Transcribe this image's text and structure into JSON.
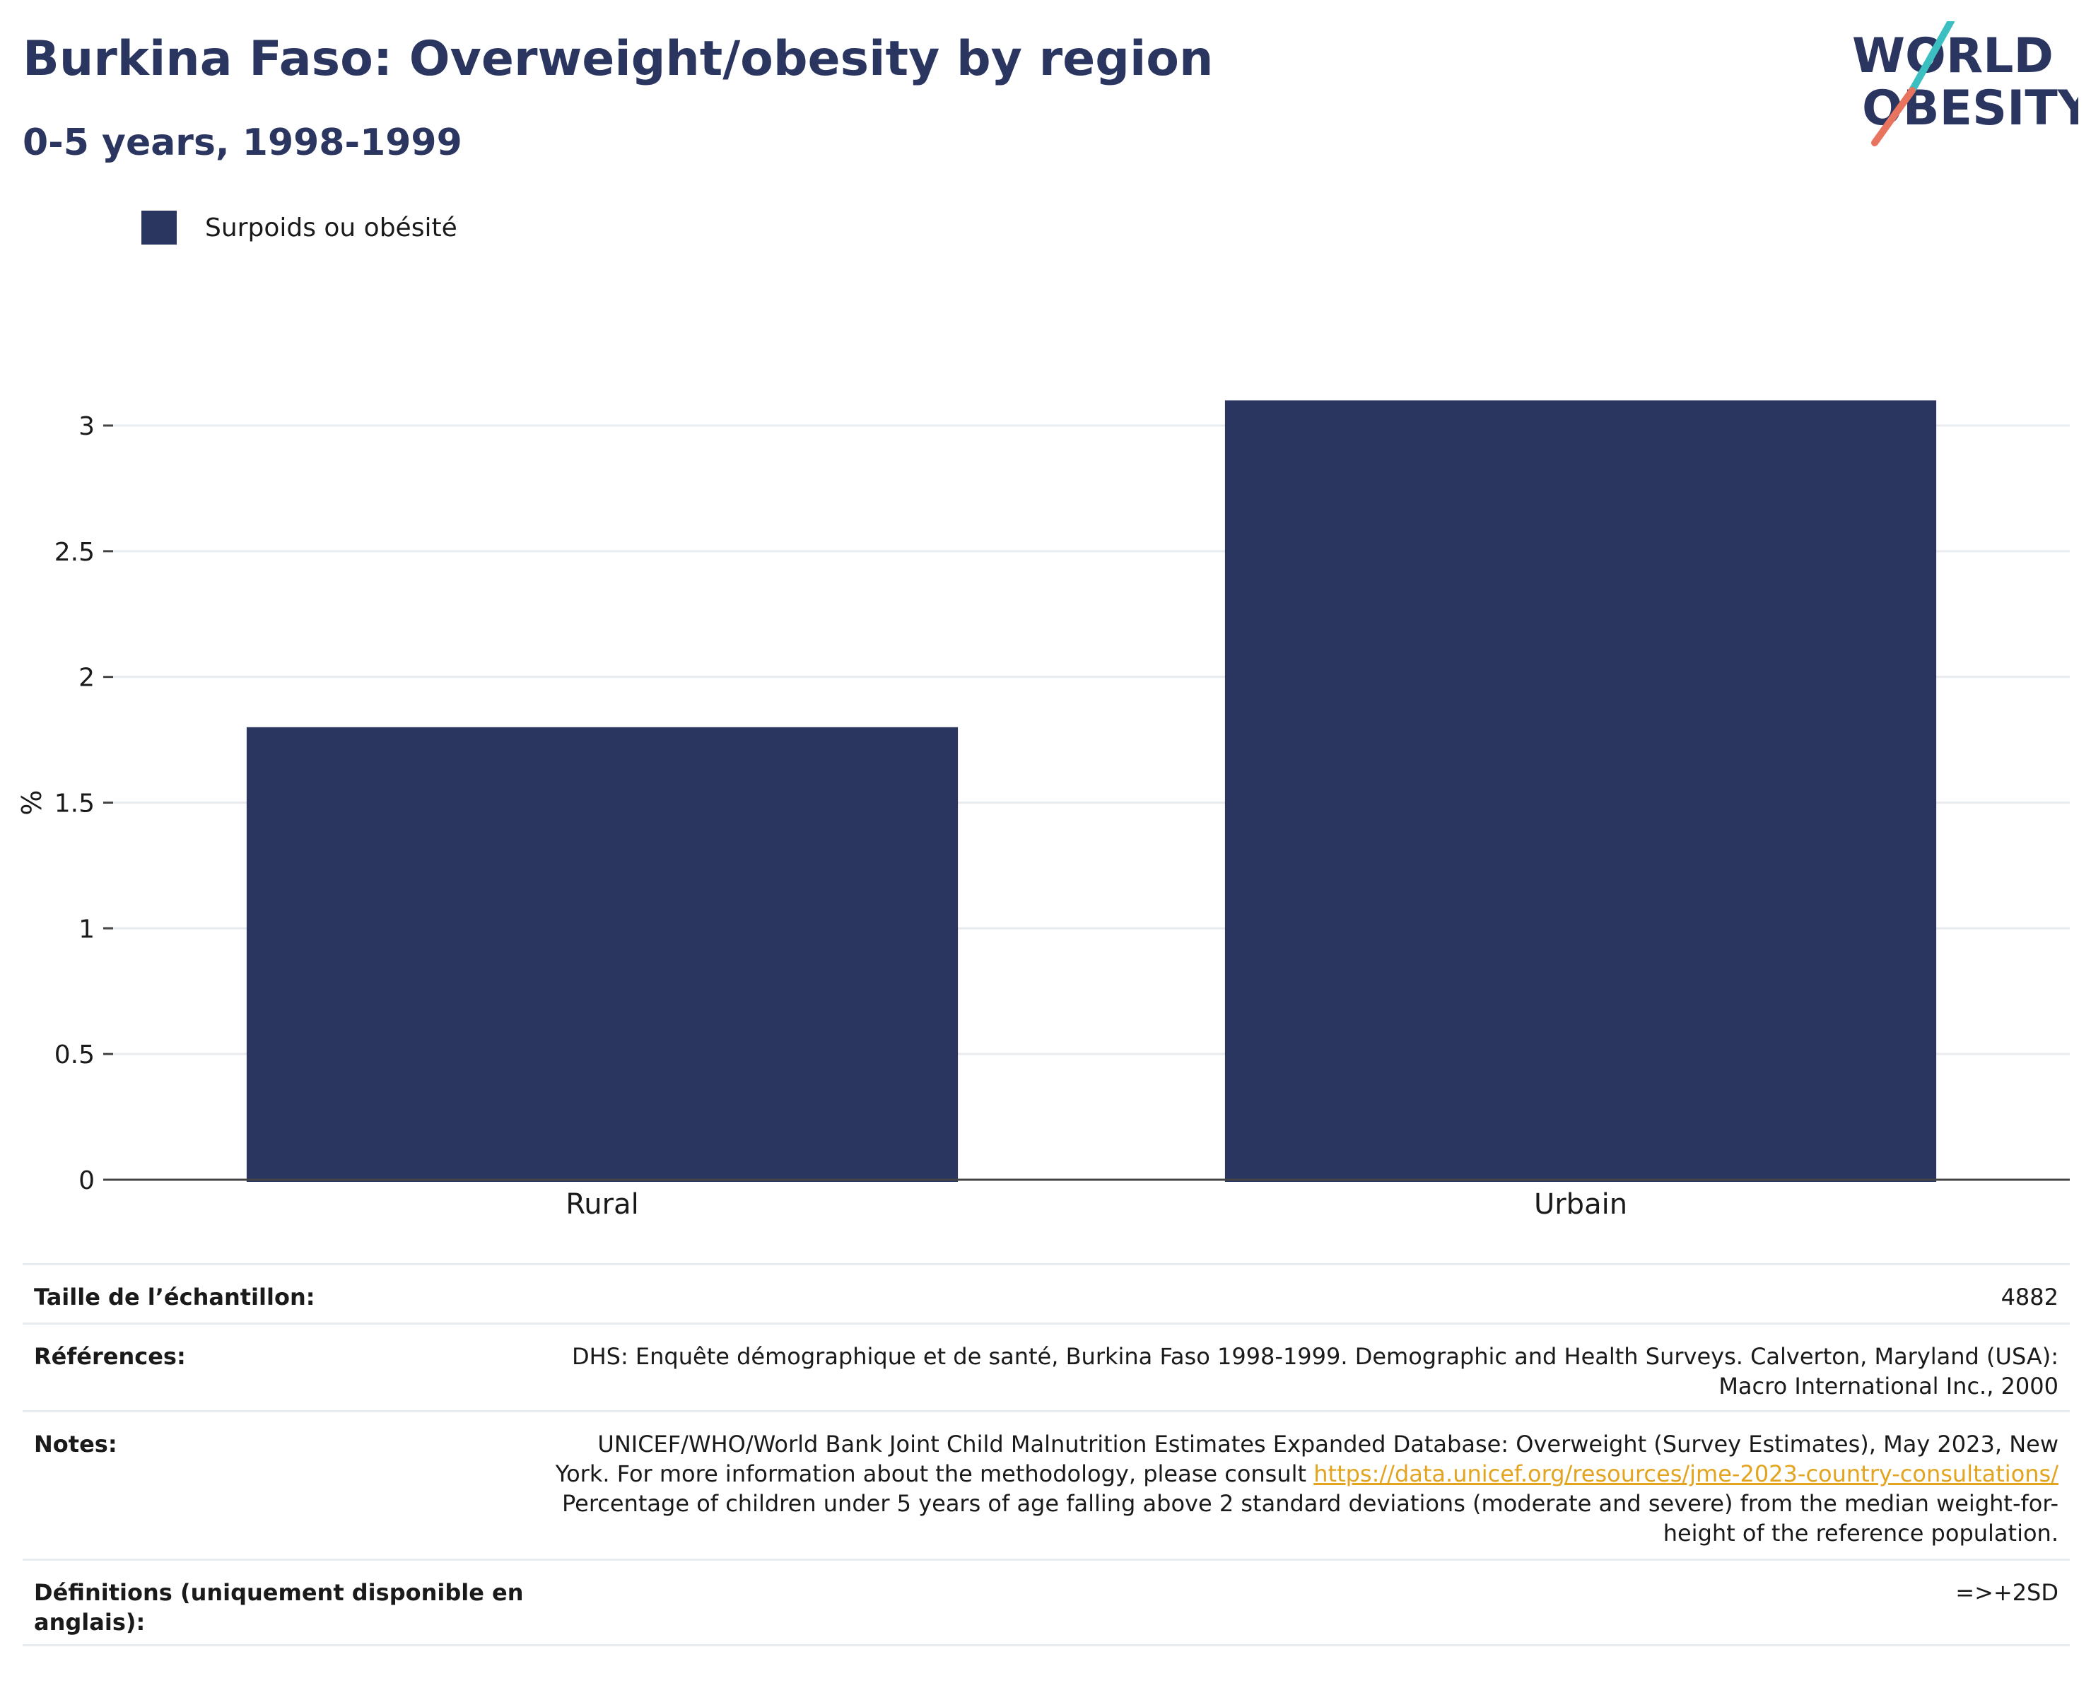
{
  "title": "Burkina Faso: Overweight/obesity by region",
  "subtitle": "0-5 years, 1998-1999",
  "logo": {
    "line1": "WORLD",
    "line2": "OBESITY"
  },
  "legend": {
    "label": "Surpoids ou obésité",
    "color": "#2a3560"
  },
  "chart_data": {
    "type": "bar",
    "categories": [
      "Rural",
      "Urbain"
    ],
    "series": [
      {
        "name": "Surpoids ou obésité",
        "values": [
          1.8,
          3.1
        ],
        "color": "#2a3560"
      }
    ],
    "ylabel": "%",
    "xlabel": "",
    "ylim": [
      0,
      3.4
    ],
    "yticks": [
      0,
      0.5,
      1,
      1.5,
      2,
      2.5,
      3
    ],
    "ytick_labels": [
      "0",
      "0.5",
      "1",
      "1.5",
      "2",
      "2.5",
      "3"
    ],
    "grid": true,
    "legend_position": "top-left"
  },
  "table": {
    "sample": {
      "label": "Taille de l’échantillon:",
      "value": "4882"
    },
    "references": {
      "label": "Références:",
      "value": "DHS: Enquête démographique et de santé, Burkina Faso 1998-1999. Demographic and Health Surveys. Calverton, Maryland (USA): Macro International Inc., 2000"
    },
    "notes": {
      "label": "Notes:",
      "text1": "UNICEF/WHO/World Bank Joint Child Malnutrition Estimates Expanded Database: Overweight (Survey Estimates), May 2023, New York. For more information about the methodology, please consult ",
      "link": "https://data.unicef.org/resources/jme-2023-country-consultations/",
      "text2": " Percentage of children under 5 years of age falling above 2 standard deviations (moderate and severe) from the median weight-for-height of the reference population."
    },
    "definitions": {
      "label": "Définitions (uniquement disponible en anglais):",
      "value": "=>+2SD"
    }
  },
  "colors": {
    "accent": "#2a3560",
    "link": "#e3a420",
    "logo_teal": "#3bbfc0",
    "logo_coral": "#e8735f"
  }
}
